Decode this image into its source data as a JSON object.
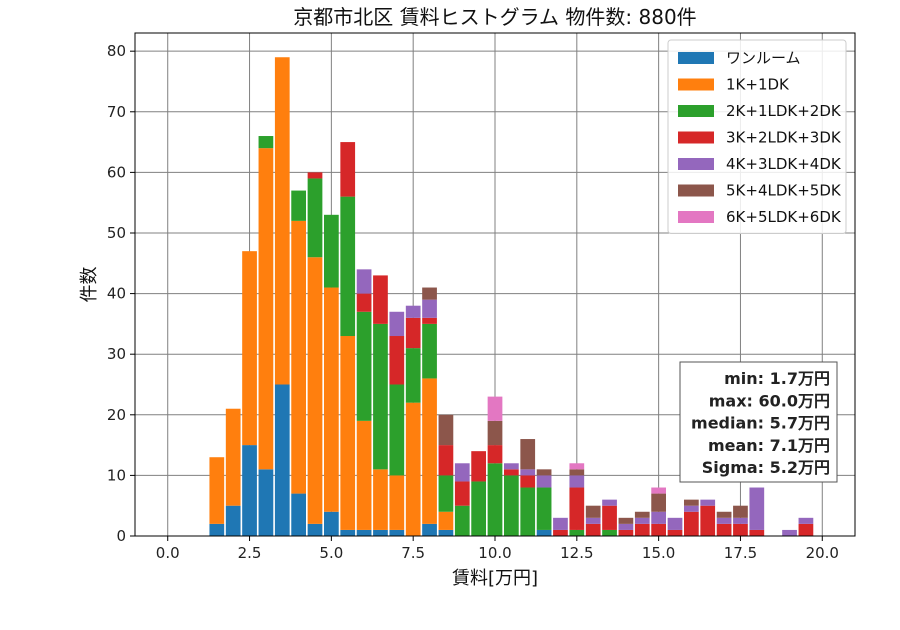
{
  "chart_data": {
    "type": "bar",
    "stacked": true,
    "title": "京都市北区 賃料ヒストグラム 物件数: 880件",
    "xlabel": "賃料[万円]",
    "ylabel": "件数",
    "xlim": [
      -1.0,
      21.0
    ],
    "ylim": [
      0,
      83
    ],
    "xticks": [
      0.0,
      2.5,
      5.0,
      7.5,
      10.0,
      12.5,
      15.0,
      17.5,
      20.0
    ],
    "xtick_labels": [
      "0.0",
      "2.5",
      "5.0",
      "7.5",
      "10.0",
      "12.5",
      "15.0",
      "17.5",
      "20.0"
    ],
    "yticks": [
      0,
      10,
      20,
      30,
      40,
      50,
      60,
      70,
      80
    ],
    "ytick_labels": [
      "0",
      "10",
      "20",
      "30",
      "40",
      "50",
      "60",
      "70",
      "80"
    ],
    "grid": true,
    "legend_position": "top-right",
    "bin_width": 0.5,
    "x": [
      1.5,
      2.0,
      2.5,
      3.0,
      3.5,
      4.0,
      4.5,
      5.0,
      5.5,
      6.0,
      6.5,
      7.0,
      7.5,
      8.0,
      8.5,
      9.0,
      9.5,
      10.0,
      10.5,
      11.0,
      11.5,
      12.0,
      12.5,
      13.0,
      13.5,
      14.0,
      14.5,
      15.0,
      15.5,
      16.0,
      16.5,
      17.0,
      17.5,
      18.0,
      18.5,
      19.0,
      19.5
    ],
    "series": [
      {
        "name": "ワンルーム",
        "color": "#1f77b4",
        "values": [
          2,
          5,
          15,
          11,
          25,
          7,
          2,
          4,
          1,
          1,
          1,
          1,
          0,
          2,
          1,
          0,
          0,
          0,
          0,
          0,
          1,
          0,
          0,
          0,
          0,
          0,
          0,
          0,
          0,
          0,
          0,
          0,
          0,
          0,
          0,
          0,
          0
        ]
      },
      {
        "name": "1K+1DK",
        "color": "#ff7f0e",
        "values": [
          11,
          16,
          32,
          53,
          54,
          45,
          44,
          37,
          32,
          18,
          10,
          9,
          22,
          24,
          3,
          0,
          0,
          0,
          0,
          0,
          0,
          0,
          0,
          0,
          0,
          0,
          0,
          0,
          0,
          0,
          0,
          0,
          0,
          0,
          0,
          0,
          0
        ]
      },
      {
        "name": "2K+1LDK+2DK",
        "color": "#2ca02c",
        "values": [
          0,
          0,
          0,
          2,
          0,
          5,
          13,
          12,
          23,
          18,
          24,
          15,
          9,
          9,
          6,
          5,
          9,
          12,
          10,
          8,
          7,
          0,
          1,
          0,
          1,
          0,
          0,
          0,
          0,
          0,
          0,
          0,
          0,
          0,
          0,
          0,
          0
        ]
      },
      {
        "name": "3K+2LDK+3DK",
        "color": "#d62728",
        "values": [
          0,
          0,
          0,
          0,
          0,
          0,
          1,
          0,
          9,
          3,
          8,
          8,
          5,
          1,
          5,
          4,
          5,
          3,
          1,
          2,
          0,
          1,
          7,
          2,
          4,
          1,
          2,
          2,
          1,
          4,
          5,
          2,
          2,
          1,
          0,
          0,
          2
        ]
      },
      {
        "name": "4K+3LDK+4DK",
        "color": "#9467bd",
        "values": [
          0,
          0,
          0,
          0,
          0,
          0,
          0,
          0,
          0,
          4,
          0,
          4,
          2,
          3,
          0,
          3,
          0,
          0,
          1,
          1,
          2,
          2,
          2,
          1,
          1,
          1,
          1,
          2,
          2,
          1,
          1,
          1,
          1,
          7,
          0,
          1,
          1
        ]
      },
      {
        "name": "5K+4LDK+5DK",
        "color": "#8c564b",
        "values": [
          0,
          0,
          0,
          0,
          0,
          0,
          0,
          0,
          0,
          0,
          0,
          0,
          0,
          2,
          5,
          0,
          0,
          4,
          0,
          5,
          1,
          0,
          1,
          2,
          0,
          1,
          1,
          3,
          0,
          1,
          0,
          1,
          2,
          0,
          0,
          0,
          0
        ]
      },
      {
        "name": "6K+5LDK+6DK",
        "color": "#e377c2",
        "values": [
          0,
          0,
          0,
          0,
          0,
          0,
          0,
          0,
          0,
          0,
          0,
          0,
          0,
          0,
          0,
          0,
          0,
          4,
          0,
          0,
          0,
          0,
          1,
          0,
          0,
          0,
          0,
          1,
          0,
          0,
          0,
          0,
          0,
          0,
          0,
          0,
          0
        ]
      }
    ],
    "stats": {
      "min": "min: 1.7万円",
      "max": "max: 60.0万円",
      "median": "median: 5.7万円",
      "mean": "mean: 7.1万円",
      "sigma": "Sigma: 5.2万円"
    }
  }
}
